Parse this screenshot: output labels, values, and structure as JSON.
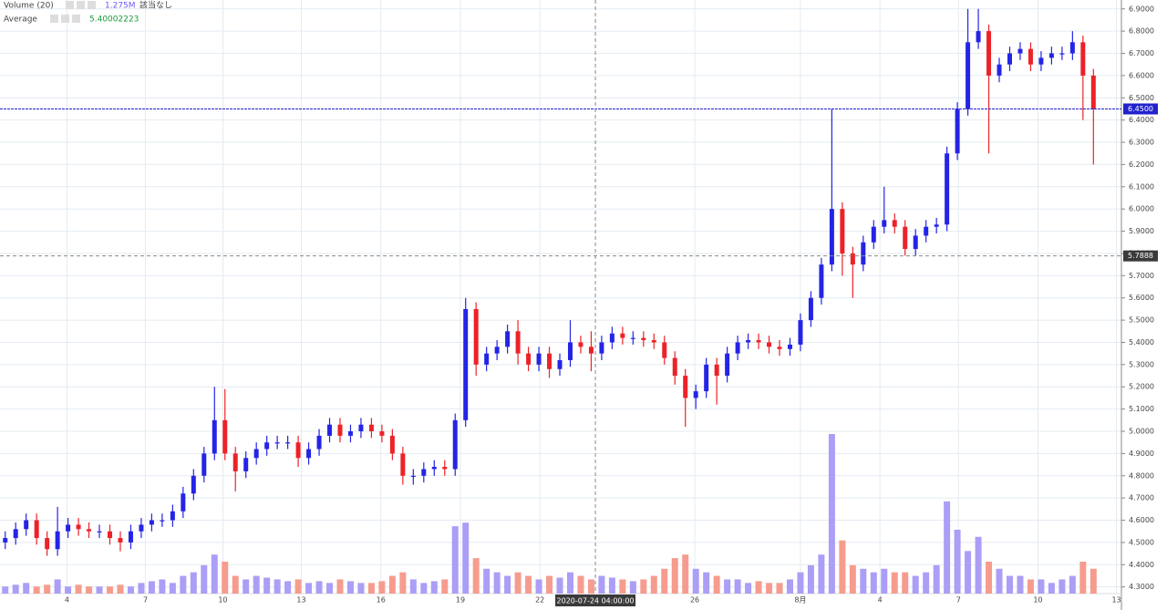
{
  "chart_data": {
    "type": "candlestick",
    "legend": {
      "volume_title": "Volume (20)",
      "volume_value": "1.275M",
      "volume_note": "該当なし",
      "average_title": "Average",
      "average_value": "5.40002223"
    },
    "open": [
      4.5,
      4.52,
      4.56,
      4.6,
      4.52,
      4.47,
      4.55,
      4.58,
      4.56,
      4.55,
      4.55,
      4.52,
      4.5,
      4.55,
      4.58,
      4.6,
      4.6,
      4.64,
      4.72,
      4.8,
      4.9,
      5.05,
      4.9,
      4.82,
      4.88,
      4.92,
      4.95,
      4.95,
      4.95,
      4.88,
      4.92,
      4.98,
      5.03,
      4.98,
      5.0,
      5.03,
      5.0,
      4.98,
      4.9,
      4.8,
      4.8,
      4.83,
      4.84,
      4.83,
      5.05,
      5.55,
      5.3,
      5.35,
      5.38,
      5.45,
      5.35,
      5.3,
      5.35,
      5.28,
      5.32,
      5.4,
      5.38,
      5.35,
      5.4,
      5.44,
      5.42,
      5.42,
      5.41,
      5.4,
      5.33,
      5.25,
      5.15,
      5.18,
      5.3,
      5.25,
      5.35,
      5.4,
      5.41,
      5.4,
      5.38,
      5.37,
      5.39,
      5.5,
      5.6,
      5.75,
      6.0,
      5.8,
      5.75,
      5.85,
      5.92,
      5.95,
      5.92,
      5.82,
      5.88,
      5.92,
      5.93,
      6.25,
      6.45,
      6.75,
      6.8,
      6.6,
      6.65,
      6.7,
      6.72,
      6.65,
      6.68,
      6.7,
      6.7,
      6.75,
      6.6
    ],
    "high": [
      4.55,
      4.59,
      4.63,
      4.63,
      4.55,
      4.66,
      4.61,
      4.61,
      4.59,
      4.58,
      4.58,
      4.55,
      4.58,
      4.61,
      4.63,
      4.63,
      4.67,
      4.75,
      4.83,
      4.93,
      5.2,
      5.19,
      4.93,
      4.91,
      4.95,
      4.98,
      4.98,
      4.98,
      4.98,
      4.95,
      5.01,
      5.06,
      5.06,
      5.03,
      5.06,
      5.06,
      5.03,
      5.01,
      4.93,
      4.83,
      4.86,
      4.87,
      4.87,
      5.08,
      5.6,
      5.58,
      5.38,
      5.41,
      5.48,
      5.5,
      5.38,
      5.38,
      5.38,
      5.35,
      5.5,
      5.43,
      5.45,
      5.43,
      5.47,
      5.47,
      5.45,
      5.45,
      5.44,
      5.43,
      5.36,
      5.28,
      5.21,
      5.33,
      5.33,
      5.38,
      5.43,
      5.44,
      5.44,
      5.43,
      5.41,
      5.42,
      5.53,
      5.63,
      5.78,
      6.45,
      6.03,
      5.83,
      5.88,
      5.95,
      6.1,
      5.98,
      5.95,
      5.91,
      5.95,
      5.96,
      6.28,
      6.48,
      6.9,
      6.9,
      6.83,
      6.68,
      6.73,
      6.75,
      6.75,
      6.71,
      6.73,
      6.73,
      6.8,
      6.78,
      6.63
    ],
    "low": [
      4.47,
      4.49,
      4.53,
      4.49,
      4.44,
      4.44,
      4.52,
      4.53,
      4.52,
      4.52,
      4.49,
      4.46,
      4.47,
      4.52,
      4.55,
      4.57,
      4.57,
      4.61,
      4.69,
      4.77,
      4.87,
      4.87,
      4.73,
      4.79,
      4.85,
      4.89,
      4.92,
      4.92,
      4.84,
      4.85,
      4.89,
      4.95,
      4.95,
      4.95,
      4.97,
      4.97,
      4.95,
      4.87,
      4.76,
      4.76,
      4.77,
      4.8,
      4.8,
      4.8,
      5.02,
      5.25,
      5.27,
      5.32,
      5.35,
      5.3,
      5.27,
      5.27,
      5.24,
      5.25,
      5.29,
      5.35,
      5.27,
      5.32,
      5.37,
      5.39,
      5.39,
      5.38,
      5.37,
      5.3,
      5.21,
      5.02,
      5.1,
      5.15,
      5.12,
      5.22,
      5.32,
      5.37,
      5.37,
      5.35,
      5.34,
      5.34,
      5.36,
      5.47,
      5.57,
      5.72,
      5.7,
      5.6,
      5.72,
      5.82,
      5.89,
      5.89,
      5.79,
      5.79,
      5.85,
      5.89,
      5.9,
      6.22,
      6.42,
      6.72,
      6.25,
      6.57,
      6.62,
      6.67,
      6.62,
      6.62,
      6.65,
      6.67,
      6.67,
      6.4,
      6.2
    ],
    "close": [
      4.52,
      4.56,
      4.6,
      4.52,
      4.47,
      4.55,
      4.58,
      4.56,
      4.55,
      4.55,
      4.52,
      4.5,
      4.55,
      4.58,
      4.6,
      4.6,
      4.64,
      4.72,
      4.8,
      4.9,
      5.05,
      4.9,
      4.82,
      4.88,
      4.92,
      4.95,
      4.95,
      4.95,
      4.88,
      4.92,
      4.98,
      5.03,
      4.98,
      5.0,
      5.03,
      5.0,
      4.98,
      4.9,
      4.8,
      4.8,
      4.83,
      4.84,
      4.83,
      5.05,
      5.55,
      5.3,
      5.35,
      5.38,
      5.45,
      5.35,
      5.3,
      5.35,
      5.28,
      5.32,
      5.4,
      5.38,
      5.35,
      5.4,
      5.44,
      5.42,
      5.42,
      5.41,
      5.4,
      5.33,
      5.25,
      5.15,
      5.18,
      5.3,
      5.25,
      5.35,
      5.4,
      5.41,
      5.4,
      5.38,
      5.37,
      5.39,
      5.5,
      5.6,
      5.75,
      6.0,
      5.8,
      5.75,
      5.85,
      5.92,
      5.95,
      5.92,
      5.82,
      5.88,
      5.92,
      5.93,
      6.25,
      6.45,
      6.75,
      6.8,
      6.6,
      6.65,
      6.7,
      6.72,
      6.65,
      6.68,
      6.7,
      6.7,
      6.75,
      6.6,
      6.45
    ],
    "volume": [
      0.2,
      0.25,
      0.3,
      0.2,
      0.25,
      0.4,
      0.2,
      0.25,
      0.2,
      0.2,
      0.2,
      0.25,
      0.2,
      0.3,
      0.35,
      0.4,
      0.3,
      0.5,
      0.6,
      0.8,
      1.1,
      0.9,
      0.5,
      0.4,
      0.5,
      0.45,
      0.4,
      0.35,
      0.4,
      0.3,
      0.35,
      0.3,
      0.4,
      0.35,
      0.3,
      0.3,
      0.35,
      0.5,
      0.6,
      0.4,
      0.3,
      0.35,
      0.4,
      1.9,
      2.0,
      1.0,
      0.7,
      0.6,
      0.5,
      0.6,
      0.5,
      0.4,
      0.5,
      0.45,
      0.6,
      0.5,
      0.4,
      0.5,
      0.45,
      0.4,
      0.35,
      0.4,
      0.5,
      0.7,
      1.0,
      1.1,
      0.7,
      0.6,
      0.5,
      0.4,
      0.4,
      0.3,
      0.35,
      0.3,
      0.3,
      0.4,
      0.6,
      0.8,
      1.1,
      4.5,
      1.5,
      0.8,
      0.7,
      0.6,
      0.7,
      0.6,
      0.6,
      0.5,
      0.6,
      0.8,
      2.6,
      1.8,
      1.2,
      1.6,
      0.9,
      0.7,
      0.5,
      0.5,
      0.4,
      0.4,
      0.3,
      0.4,
      0.5,
      0.9,
      0.7
    ],
    "colors": {
      "up": "#2424e6",
      "down": "#ec2228",
      "volume_up": "#ab9ef6",
      "volume_down": "#f69c8e"
    },
    "xlim": [
      0,
      107
    ],
    "xticks": [
      {
        "value": 6.4,
        "label": "4"
      },
      {
        "value": 13.9,
        "label": "7"
      },
      {
        "value": 21.3,
        "label": "10"
      },
      {
        "value": 28.8,
        "label": "13"
      },
      {
        "value": 36.4,
        "label": "16"
      },
      {
        "value": 44,
        "label": "19"
      },
      {
        "value": 51.6,
        "label": "22"
      },
      {
        "value": 66.4,
        "label": "26"
      },
      {
        "value": 76.5,
        "label": "8月"
      },
      {
        "value": 84.1,
        "label": "4"
      },
      {
        "value": 91.6,
        "label": "7"
      },
      {
        "value": 99.2,
        "label": "10"
      },
      {
        "value": 106.7,
        "label": "13"
      }
    ],
    "ylim": [
      4.27,
      6.94
    ],
    "yticks": [
      {
        "value": 4.3,
        "label": "4.3000"
      },
      {
        "value": 4.4,
        "label": "4.4000"
      },
      {
        "value": 4.5,
        "label": "4.5000"
      },
      {
        "value": 4.6,
        "label": "4.6000"
      },
      {
        "value": 4.7,
        "label": "4.7000"
      },
      {
        "value": 4.8,
        "label": "4.8000"
      },
      {
        "value": 4.9,
        "label": "4.9000"
      },
      {
        "value": 5.0,
        "label": "5.0000"
      },
      {
        "value": 5.1,
        "label": "5.1000"
      },
      {
        "value": 5.2,
        "label": "5.2000"
      },
      {
        "value": 5.3,
        "label": "5.3000"
      },
      {
        "value": 5.4,
        "label": "5.4000"
      },
      {
        "value": 5.5,
        "label": "5.5000"
      },
      {
        "value": 5.6,
        "label": "5.6000"
      },
      {
        "value": 5.7,
        "label": "5.7000"
      },
      {
        "value": 5.8,
        "label": "5.8000"
      },
      {
        "value": 5.9,
        "label": "5.9000"
      },
      {
        "value": 6.0,
        "label": "6.0000"
      },
      {
        "value": 6.1,
        "label": "6.1000"
      },
      {
        "value": 6.2,
        "label": "6.2000"
      },
      {
        "value": 6.3,
        "label": "6.3000"
      },
      {
        "value": 6.4,
        "label": "6.4000"
      },
      {
        "value": 6.5,
        "label": "6.5000"
      },
      {
        "value": 6.6,
        "label": "6.6000"
      },
      {
        "value": 6.7,
        "label": "6.7000"
      },
      {
        "value": 6.8,
        "label": "6.8000"
      },
      {
        "value": 6.9,
        "label": "6.9000"
      }
    ],
    "grid": true,
    "price_line": {
      "value": 6.45,
      "label": "6.4500",
      "color": "#2222cc"
    },
    "crosshair": {
      "y": {
        "value": 5.7888,
        "label": "5.7888"
      },
      "x": {
        "value": 56.9,
        "label": "2020-07-24 04:00:00"
      }
    }
  }
}
